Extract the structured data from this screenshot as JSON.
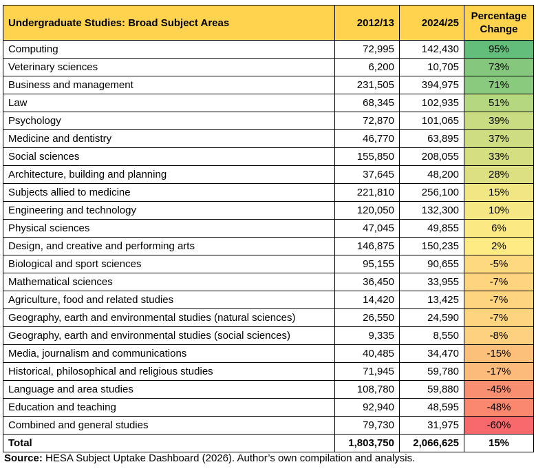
{
  "table": {
    "headers": {
      "subject": "Undergraduate Studies: Broad Subject Areas",
      "y1": "2012/13",
      "y2": "2024/25",
      "change": "Percentage Change"
    },
    "rows": [
      {
        "subject": "Computing",
        "y1": "72,995",
        "y2": "142,430",
        "change": "95%",
        "color": "#63be7b"
      },
      {
        "subject": "Veterinary sciences",
        "y1": "6,200",
        "y2": "10,705",
        "change": "73%",
        "color": "#85c87d"
      },
      {
        "subject": "Business and management",
        "y1": "231,505",
        "y2": "394,975",
        "change": "71%",
        "color": "#8aca7e"
      },
      {
        "subject": "Law",
        "y1": "68,345",
        "y2": "102,935",
        "change": "51%",
        "color": "#b5d780"
      },
      {
        "subject": "Psychology",
        "y1": "72,870",
        "y2": "101,065",
        "change": "39%",
        "color": "#c9dc81"
      },
      {
        "subject": "Medicine and dentistry",
        "y1": "46,770",
        "y2": "63,895",
        "change": "37%",
        "color": "#cedd82"
      },
      {
        "subject": "Social sciences",
        "y1": "155,850",
        "y2": "208,055",
        "change": "33%",
        "color": "#d5df82"
      },
      {
        "subject": "Architecture, building and planning",
        "y1": "37,645",
        "y2": "48,200",
        "change": "28%",
        "color": "#dde082"
      },
      {
        "subject": "Subjects allied to medicine",
        "y1": "221,810",
        "y2": "256,100",
        "change": "15%",
        "color": "#f0e683"
      },
      {
        "subject": "Engineering and technology",
        "y1": "120,050",
        "y2": "132,300",
        "change": "10%",
        "color": "#f4e784"
      },
      {
        "subject": "Physical sciences",
        "y1": "47,045",
        "y2": "49,855",
        "change": "6%",
        "color": "#fbea84"
      },
      {
        "subject": "Design, and creative and performing arts",
        "y1": "146,875",
        "y2": "150,235",
        "change": "2%",
        "color": "#ffeb84"
      },
      {
        "subject": "Biological and sport sciences",
        "y1": "95,155",
        "y2": "90,655",
        "change": "-5%",
        "color": "#fed980"
      },
      {
        "subject": "Mathematical sciences",
        "y1": "36,450",
        "y2": "33,955",
        "change": "-7%",
        "color": "#fed47f"
      },
      {
        "subject": "Agriculture, food and related studies",
        "y1": "14,420",
        "y2": "13,425",
        "change": "-7%",
        "color": "#fed47f"
      },
      {
        "subject": "Geography, earth and environmental studies (natural sciences)",
        "y1": "26,550",
        "y2": "24,590",
        "change": "-7%",
        "color": "#fed47f"
      },
      {
        "subject": "Geography, earth and environmental studies (social sciences)",
        "y1": "9,335",
        "y2": "8,550",
        "change": "-8%",
        "color": "#fdd17f"
      },
      {
        "subject": "Media, journalism and communications",
        "y1": "40,485",
        "y2": "34,470",
        "change": "-15%",
        "color": "#fcc07b"
      },
      {
        "subject": "Historical, philosophical and religious studies",
        "y1": "71,945",
        "y2": "59,780",
        "change": "-17%",
        "color": "#fcbb7a"
      },
      {
        "subject": "Language and area studies",
        "y1": "108,780",
        "y2": "59,880",
        "change": "-45%",
        "color": "#f98f71"
      },
      {
        "subject": "Education and teaching",
        "y1": "92,940",
        "y2": "48,595",
        "change": "-48%",
        "color": "#f9886f"
      },
      {
        "subject": "Combined and general studies",
        "y1": "79,730",
        "y2": "31,975",
        "change": "-60%",
        "color": "#f8696b"
      }
    ],
    "total": {
      "subject": "Total",
      "y1": "1,803,750",
      "y2": "2,066,625",
      "change": "15%"
    },
    "header_color": "#ffd34d"
  },
  "source": {
    "label": "Source:",
    "text": " HESA Subject Uptake Dashboard (2026). Author’s own compilation and analysis."
  }
}
